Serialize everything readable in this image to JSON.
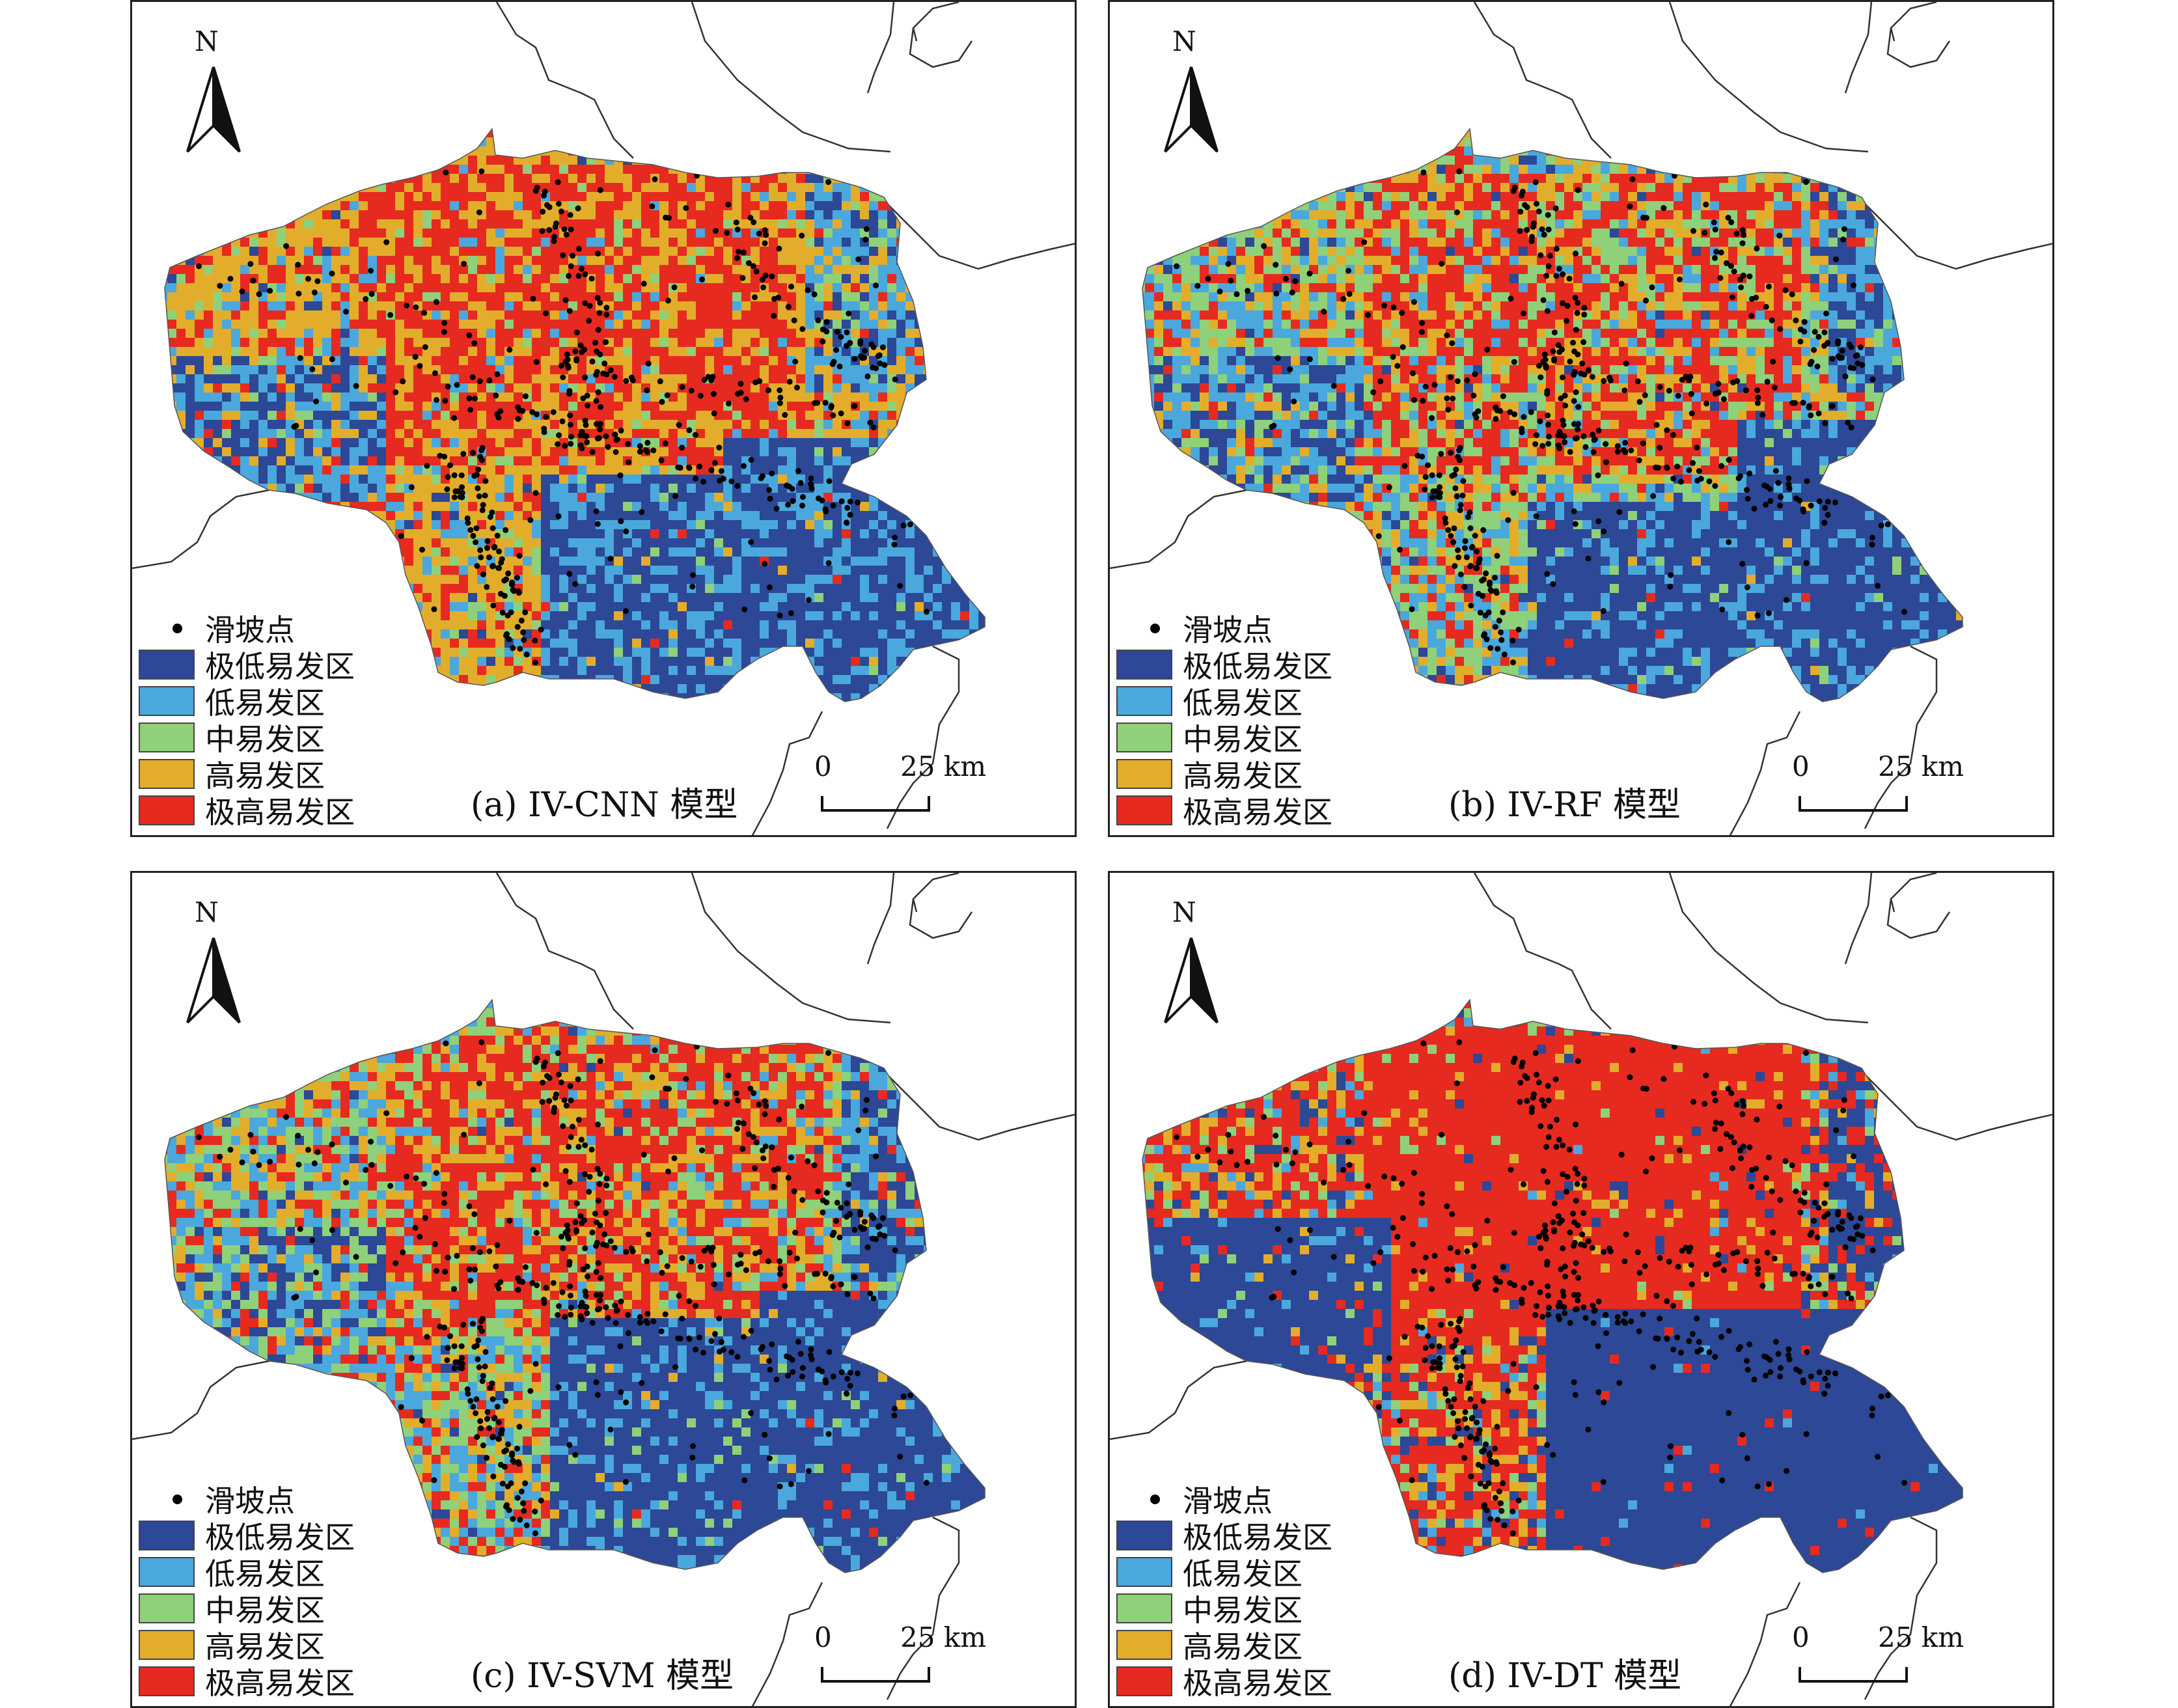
{
  "legend": {
    "point_label": "滑坡点",
    "classes": [
      {
        "label": "极低易发区",
        "color": "#2c4896"
      },
      {
        "label": "低易发区",
        "color": "#4aa8dc"
      },
      {
        "label": "中易发区",
        "color": "#8fd07a"
      },
      {
        "label": "高易发区",
        "color": "#e3ad2c"
      },
      {
        "label": "极高易发区",
        "color": "#e62a20"
      }
    ]
  },
  "north_arrow": {
    "label": "N"
  },
  "scale_bar": {
    "zero": "0",
    "max": "25 km"
  },
  "panels": [
    {
      "caption": "(a) IV-CNN 模型",
      "dominant": "high"
    },
    {
      "caption": "(b) IV-RF 模型",
      "dominant": "mixed"
    },
    {
      "caption": "(c) IV-SVM 模型",
      "dominant": "mixed"
    },
    {
      "caption": "(d) IV-DT 模型",
      "dominant": "extreme"
    }
  ],
  "colors": {
    "border": "#222222",
    "region_outline": "#333333",
    "landslide_point": "#000000"
  }
}
